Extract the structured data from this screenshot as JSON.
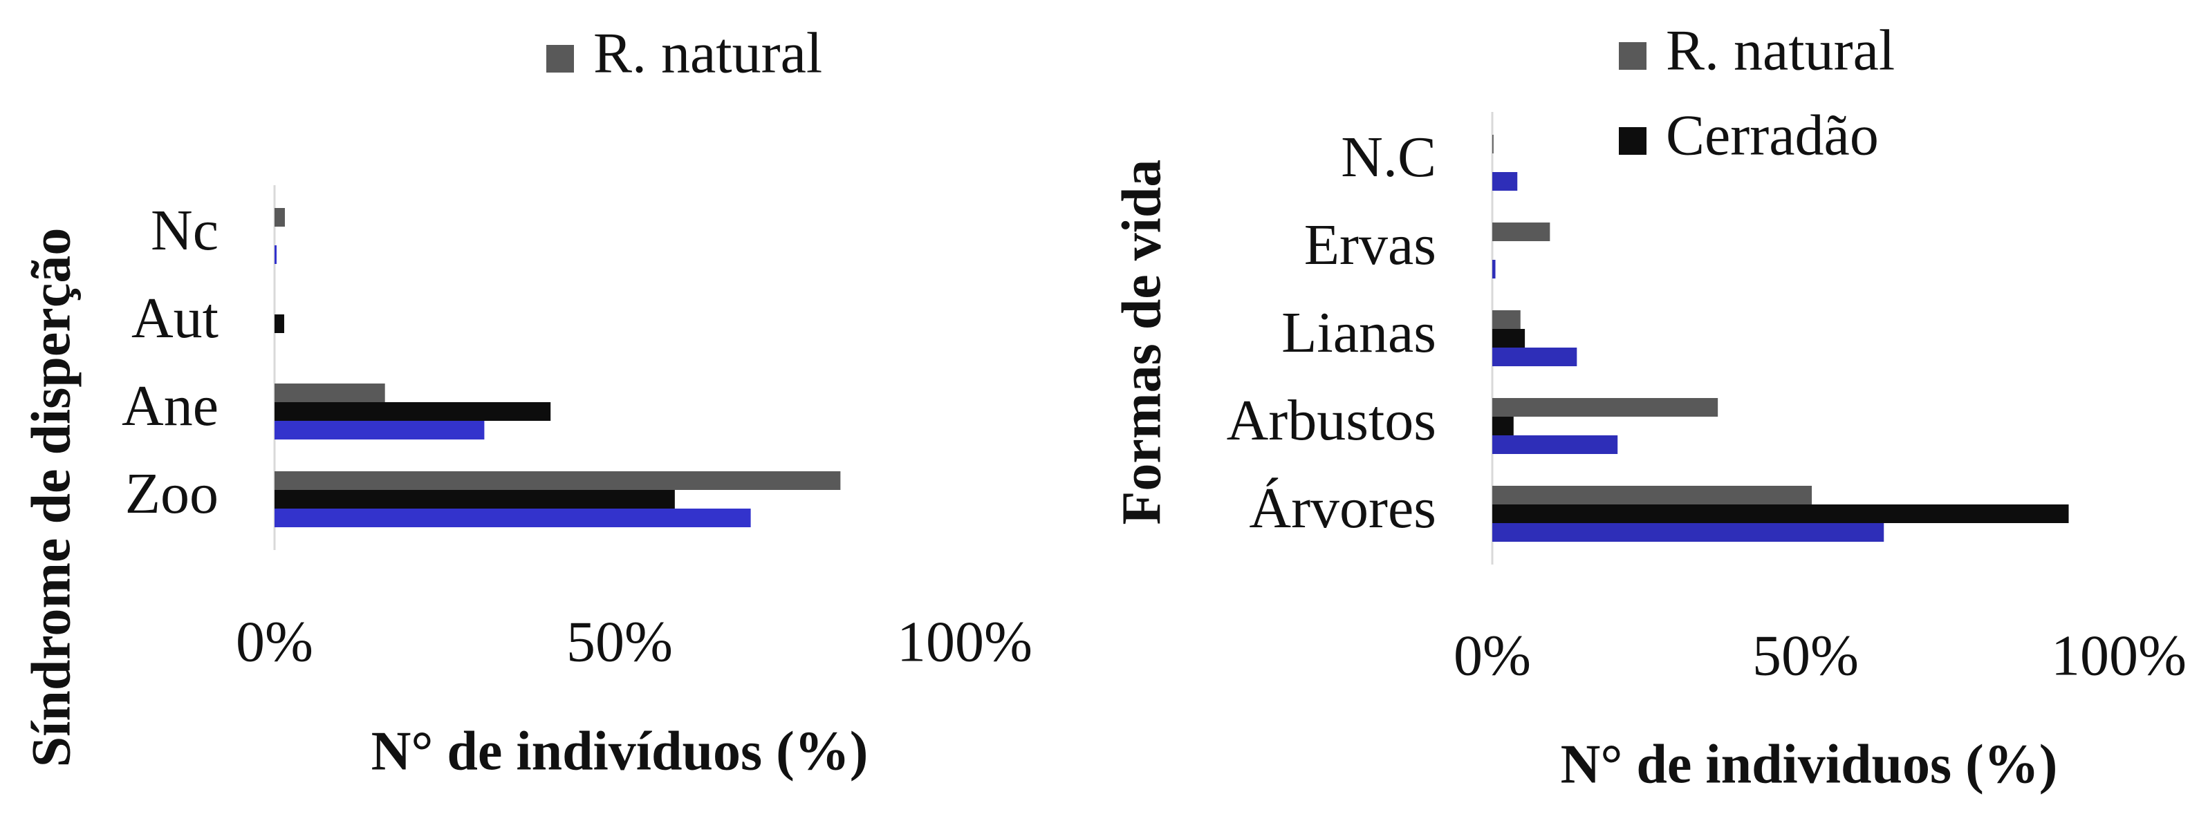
{
  "chart_data": [
    {
      "type": "bar",
      "orientation": "horizontal",
      "categories": [
        "Nc",
        "Aut",
        "Ane",
        "Zoo"
      ],
      "series": [
        {
          "name": "R. natural",
          "color": "#595959",
          "values": [
            1.5,
            0,
            16,
            82
          ]
        },
        {
          "color": "#0d0d0d",
          "values": [
            0,
            1.4,
            40,
            58
          ]
        },
        {
          "color": "#3333cc",
          "values": [
            0.3,
            0,
            30.4,
            69
          ]
        }
      ],
      "xlim": [
        0,
        100
      ],
      "xticks": [
        {
          "value": 0,
          "label": "0%"
        },
        {
          "value": 50,
          "label": "50%"
        },
        {
          "value": 100,
          "label": "100%"
        }
      ],
      "xlabel": "N° de indivíduos (%)",
      "ylabel": "Síndrome de disperção",
      "grid": false
    },
    {
      "type": "bar",
      "orientation": "horizontal",
      "categories": [
        "N.C",
        "Ervas",
        "Lianas",
        "Arbustos",
        "Árvores"
      ],
      "series": [
        {
          "name": "R. natural",
          "color": "#595959",
          "values": [
            0.2,
            9.2,
            4.5,
            36,
            51
          ]
        },
        {
          "name": "Cerradão",
          "color": "#0d0d0d",
          "values": [
            0,
            0,
            5.2,
            3.4,
            92
          ]
        },
        {
          "color": "#2e2eb8",
          "values": [
            4,
            0.5,
            13.5,
            20,
            62.5
          ]
        }
      ],
      "xlim": [
        0,
        100
      ],
      "xticks": [
        {
          "value": 0,
          "label": "0%"
        },
        {
          "value": 50,
          "label": "50%"
        },
        {
          "value": 100,
          "label": "100%"
        }
      ],
      "xlabel": "N° de individuos (%)",
      "ylabel": "Formas de vida",
      "grid": false
    }
  ]
}
